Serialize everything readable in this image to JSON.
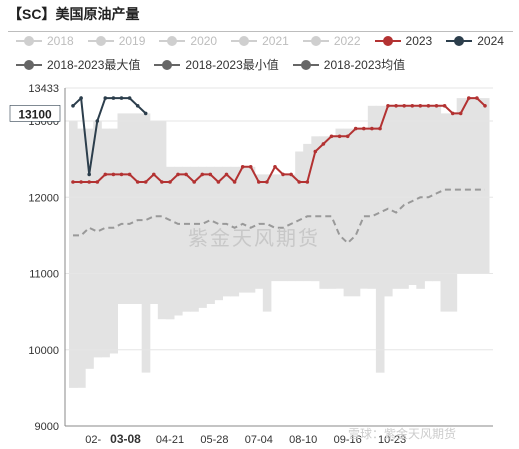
{
  "chart_data": {
    "type": "line",
    "title": "【SC】美国原油产量",
    "xlabel": "",
    "ylabel": "",
    "ylim": [
      9000,
      13433
    ],
    "y_ticks": [
      "13433",
      "13000",
      "12000",
      "11000",
      "10000",
      "9000"
    ],
    "x_ticks": [
      "02-",
      "03-08",
      "04-21",
      "05-28",
      "07-04",
      "08-10",
      "09-16",
      "10-23"
    ],
    "x_tick_weeks": [
      2.5,
      6.5,
      12,
      17.5,
      23,
      28.5,
      34,
      39.5
    ],
    "highlight_x_tick": "03-08",
    "n_weeks": 52,
    "current_value_label": "13100",
    "legend_row1": [
      {
        "name": "2018",
        "color": "#cccccc",
        "active": false
      },
      {
        "name": "2019",
        "color": "#cccccc",
        "active": false
      },
      {
        "name": "2020",
        "color": "#cccccc",
        "active": false
      },
      {
        "name": "2021",
        "color": "#cccccc",
        "active": false
      },
      {
        "name": "2022",
        "color": "#cccccc",
        "active": false
      },
      {
        "name": "2023",
        "color": "#b33232",
        "active": true
      },
      {
        "name": "2024",
        "color": "#2c3e4c",
        "active": true
      }
    ],
    "legend_row2": [
      {
        "name": "2018-2023最大值",
        "color": "#666666",
        "active": true
      },
      {
        "name": "2018-2023最小值",
        "color": "#666666",
        "active": true
      },
      {
        "name": "2018-2023均值",
        "color": "#666666",
        "active": true
      }
    ],
    "series": [
      {
        "name": "2018-2023最大值",
        "color": "#e3e3e3",
        "values": [
          13000,
          12900,
          12900,
          13000,
          12900,
          12900,
          13100,
          13100,
          13100,
          13100,
          13000,
          13000,
          12400,
          12400,
          12400,
          12400,
          12400,
          12400,
          12400,
          12400,
          12400,
          12400,
          12400,
          12300,
          12300,
          12300,
          12300,
          12300,
          12600,
          12700,
          12800,
          12800,
          12800,
          12900,
          12900,
          12900,
          12900,
          13200,
          13200,
          13200,
          13200,
          13200,
          13200,
          13200,
          13200,
          13200,
          13100,
          13100,
          13300,
          13300,
          13300,
          13300
        ]
      },
      {
        "name": "2018-2023最小值",
        "color": "#ffffff",
        "values": [
          9500,
          9500,
          9750,
          9900,
          9900,
          9950,
          10600,
          10600,
          10600,
          9700,
          10600,
          10400,
          10400,
          10450,
          10500,
          10500,
          10550,
          10600,
          10650,
          10700,
          10700,
          10750,
          10750,
          10800,
          10500,
          10900,
          10900,
          10900,
          10900,
          10900,
          10900,
          10800,
          10800,
          10800,
          10700,
          10700,
          10800,
          10800,
          9700,
          10700,
          10800,
          10800,
          10850,
          10800,
          10900,
          10900,
          10500,
          10500,
          11000,
          11000,
          11000,
          11000
        ]
      },
      {
        "name": "2018-2023均值",
        "color": "#999999",
        "values": [
          11500,
          11500,
          11600,
          11550,
          11600,
          11600,
          11650,
          11650,
          11700,
          11700,
          11750,
          11750,
          11700,
          11650,
          11650,
          11650,
          11650,
          11700,
          11650,
          11650,
          11600,
          11650,
          11600,
          11650,
          11650,
          11600,
          11600,
          11650,
          11700,
          11750,
          11750,
          11750,
          11750,
          11500,
          11400,
          11500,
          11750,
          11750,
          11800,
          11850,
          11800,
          11900,
          11950,
          12000,
          12000,
          12050,
          12100,
          12100,
          12100,
          12100,
          12100,
          12100
        ]
      },
      {
        "name": "2023",
        "color": "#b33232",
        "values": [
          12200,
          12200,
          12200,
          12200,
          12300,
          12300,
          12300,
          12300,
          12200,
          12200,
          12300,
          12200,
          12200,
          12300,
          12300,
          12200,
          12300,
          12300,
          12200,
          12300,
          12200,
          12400,
          12400,
          12200,
          12200,
          12400,
          12300,
          12300,
          12200,
          12200,
          12600,
          12700,
          12800,
          12800,
          12800,
          12900,
          12900,
          12900,
          12900,
          13200,
          13200,
          13200,
          13200,
          13200,
          13200,
          13200,
          13200,
          13100,
          13100,
          13300,
          13300,
          13200
        ]
      },
      {
        "name": "2024",
        "color": "#2c3e4c",
        "values": [
          13200,
          13300,
          12300,
          13000,
          13300,
          13300,
          13300,
          13300,
          13200,
          13100
        ]
      }
    ]
  },
  "watermark": "紫金天风期货",
  "footer_watermark": "雪球：紫金天风期货"
}
